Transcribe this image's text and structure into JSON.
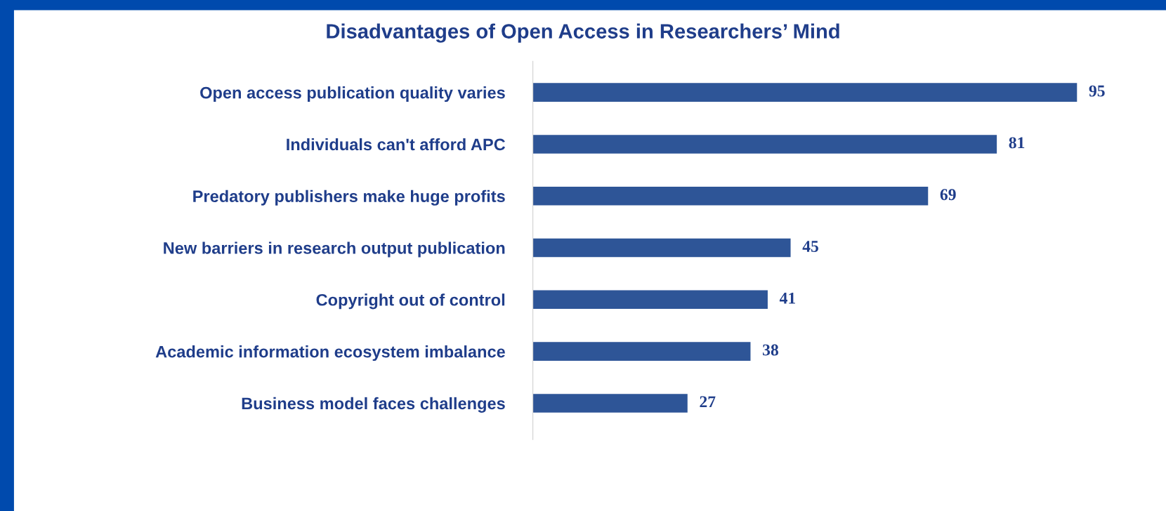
{
  "chart_data": {
    "type": "bar",
    "orientation": "horizontal",
    "title": "Disadvantages of Open Access in Researchers’ Mind",
    "categories": [
      "Open access publication quality varies",
      "Individuals can't afford APC",
      "Predatory publishers make huge profits",
      "New barriers in research output publication",
      "Copyright out of control",
      "Academic information ecosystem imbalance",
      "Business model faces challenges"
    ],
    "values": [
      95,
      81,
      69,
      45,
      41,
      38,
      27
    ],
    "color": "#2e5597",
    "data_labels": true,
    "grid": false,
    "legend": false,
    "tick_labels": "y"
  }
}
